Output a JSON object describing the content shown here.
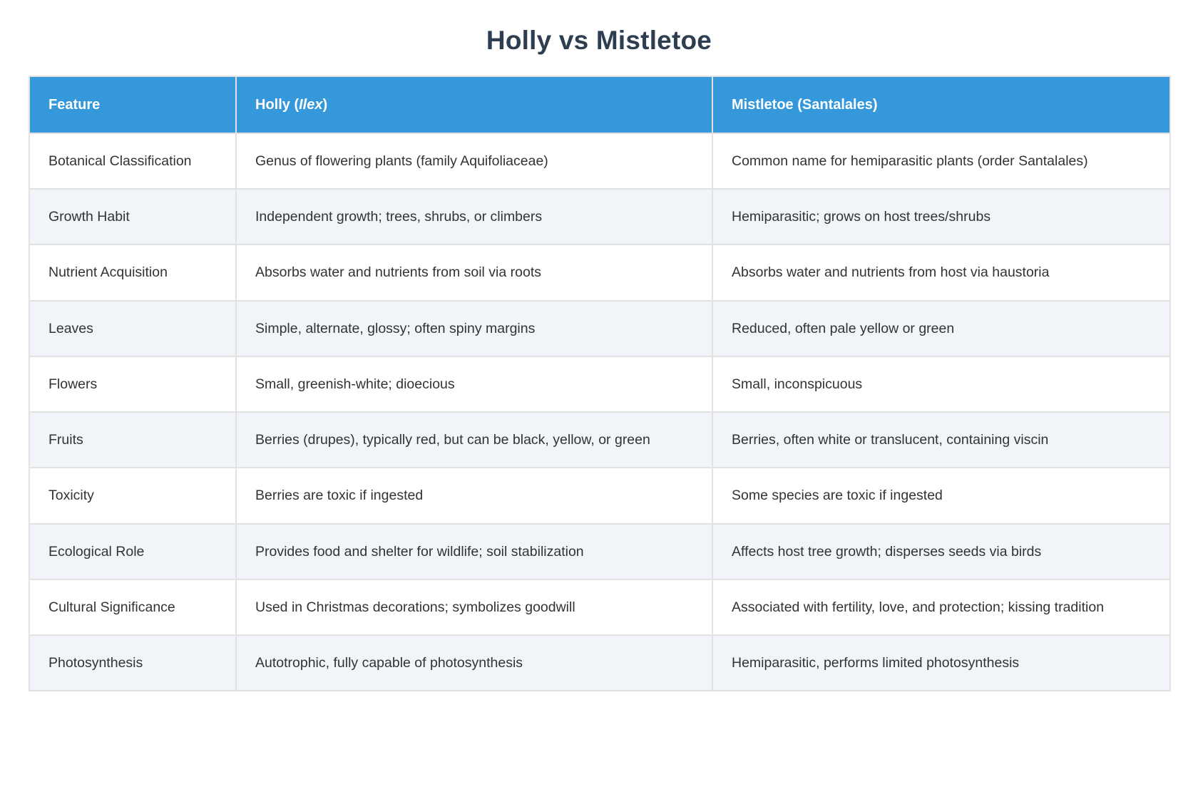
{
  "title": "Holly vs Mistletoe",
  "colors": {
    "header_bg": "#3498db",
    "header_text": "#ffffff",
    "title_text": "#2c3e50",
    "body_text": "#333333",
    "alt_row_bg": "#f1f5f9",
    "border": "#e2e2e2"
  },
  "table": {
    "headers": {
      "feature": "Feature",
      "holly_prefix": "Holly (",
      "holly_italic": "Ilex",
      "holly_suffix": ")",
      "mistletoe": "Mistletoe (Santalales)"
    },
    "rows": [
      {
        "feature": "Botanical Classification",
        "holly": "Genus of flowering plants (family Aquifoliaceae)",
        "mistletoe": "Common name for hemiparasitic plants (order Santalales)"
      },
      {
        "feature": "Growth Habit",
        "holly": "Independent growth; trees, shrubs, or climbers",
        "mistletoe": "Hemiparasitic; grows on host trees/shrubs"
      },
      {
        "feature": "Nutrient Acquisition",
        "holly": "Absorbs water and nutrients from soil via roots",
        "mistletoe": "Absorbs water and nutrients from host via haustoria"
      },
      {
        "feature": "Leaves",
        "holly": "Simple, alternate, glossy; often spiny margins",
        "mistletoe": "Reduced, often pale yellow or green"
      },
      {
        "feature": "Flowers",
        "holly": "Small, greenish-white; dioecious",
        "mistletoe": "Small, inconspicuous"
      },
      {
        "feature": "Fruits",
        "holly": "Berries (drupes), typically red, but can be black, yellow, or green",
        "mistletoe": "Berries, often white or translucent, containing viscin"
      },
      {
        "feature": "Toxicity",
        "holly": "Berries are toxic if ingested",
        "mistletoe": "Some species are toxic if ingested"
      },
      {
        "feature": "Ecological Role",
        "holly": "Provides food and shelter for wildlife; soil stabilization",
        "mistletoe": "Affects host tree growth; disperses seeds via birds"
      },
      {
        "feature": "Cultural Significance",
        "holly": "Used in Christmas decorations; symbolizes goodwill",
        "mistletoe": "Associated with fertility, love, and protection; kissing tradition"
      },
      {
        "feature": "Photosynthesis",
        "holly": "Autotrophic, fully capable of photosynthesis",
        "mistletoe": "Hemiparasitic, performs limited photosynthesis"
      }
    ]
  }
}
